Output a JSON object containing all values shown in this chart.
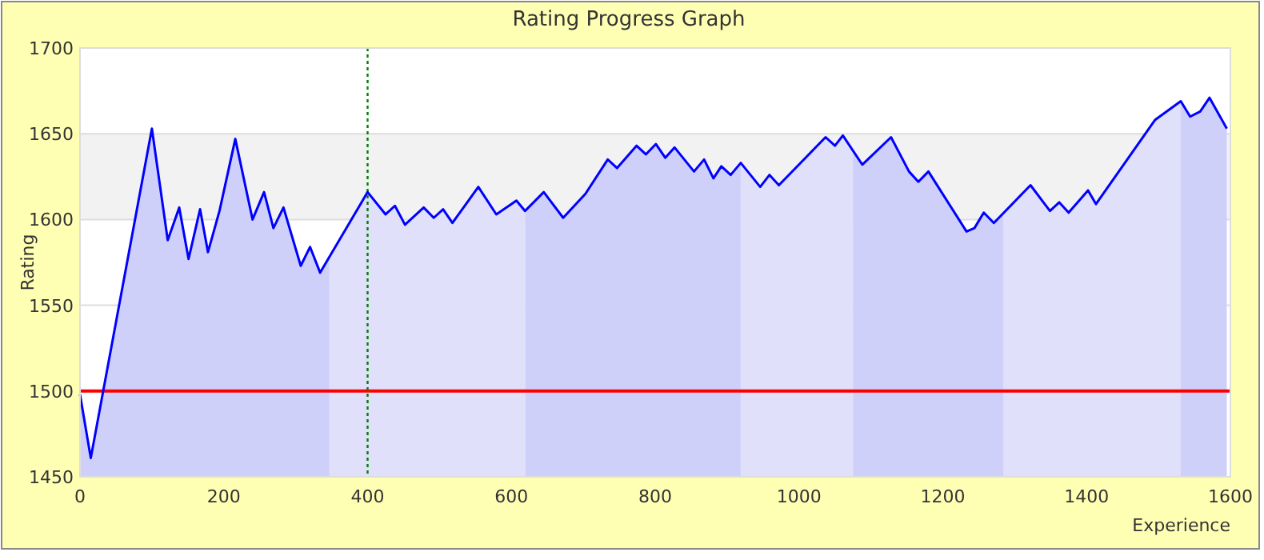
{
  "chart_data": {
    "type": "line",
    "title": "Rating Progress Graph",
    "xlabel": "Experience",
    "ylabel": "Rating",
    "xlim": [
      0,
      1600
    ],
    "xticks": [
      0,
      200,
      400,
      600,
      800,
      1000,
      1200,
      1400,
      1600
    ],
    "ylim": [
      1450,
      1700
    ],
    "yticks": [
      1450,
      1500,
      1550,
      1600,
      1650,
      1700
    ],
    "grid": "y",
    "bands": [
      {
        "axis": "y",
        "from": 1600,
        "to": 1650,
        "color": "#f2f2f2"
      }
    ],
    "ref_lines": [
      {
        "axis": "y",
        "value": 1500,
        "color": "#ff0000",
        "line_style": "solid"
      },
      {
        "axis": "x",
        "value": 400,
        "color": "#008000",
        "line_style": "dotted"
      }
    ],
    "series": [
      {
        "type": "area",
        "color": "#cfd0fa",
        "x": [
          0,
          15,
          100,
          122,
          138,
          151,
          167,
          178,
          194,
          216,
          240,
          256,
          269,
          283,
          307,
          320,
          334,
          347
        ],
        "values": [
          1498,
          1461,
          1653,
          1588,
          1607,
          1577,
          1606,
          1581,
          1605,
          1647,
          1600,
          1616,
          1595,
          1607,
          1573,
          1584,
          1569,
          1578
        ]
      },
      {
        "type": "area",
        "color": "#e0e0fa",
        "x": [
          347,
          400,
          425,
          438,
          452,
          478,
          492,
          505,
          518,
          554,
          579,
          607,
          619
        ],
        "values": [
          1578,
          1616,
          1603,
          1608,
          1597,
          1607,
          1601,
          1606,
          1598,
          1619,
          1603,
          1611,
          1605
        ]
      },
      {
        "type": "area",
        "color": "#cfd0fa",
        "x": [
          619,
          645,
          672,
          703,
          734,
          747,
          774,
          787,
          801,
          814,
          827,
          854,
          868,
          881,
          892,
          905,
          919
        ],
        "values": [
          1605,
          1616,
          1601,
          1615,
          1635,
          1630,
          1643,
          1638,
          1644,
          1636,
          1642,
          1628,
          1635,
          1624,
          1631,
          1626,
          1633
        ]
      },
      {
        "type": "area",
        "color": "#e0e0fa",
        "x": [
          919,
          946,
          959,
          972,
          1037,
          1050,
          1061,
          1075
        ],
        "values": [
          1633,
          1619,
          1626,
          1620,
          1648,
          1643,
          1649,
          1640
        ]
      },
      {
        "type": "area",
        "color": "#cfd0fa",
        "x": [
          1075,
          1088,
          1128,
          1153,
          1166,
          1180,
          1233,
          1244,
          1257,
          1271,
          1284
        ],
        "values": [
          1640,
          1632,
          1648,
          1628,
          1622,
          1628,
          1593,
          1595,
          1604,
          1598,
          1604
        ]
      },
      {
        "type": "area",
        "color": "#e0e0fa",
        "x": [
          1284,
          1322,
          1349,
          1362,
          1375,
          1402,
          1413,
          1495,
          1531
        ],
        "values": [
          1604,
          1620,
          1605,
          1610,
          1604,
          1617,
          1609,
          1658,
          1669
        ]
      },
      {
        "type": "area",
        "color": "#cfd0fa",
        "x": [
          1531,
          1544,
          1558,
          1571,
          1595
        ],
        "values": [
          1669,
          1660,
          1663,
          1671,
          1653
        ]
      },
      {
        "color": "#0000ff",
        "x": [
          0,
          15,
          100,
          122,
          138,
          151,
          167,
          178,
          194,
          216,
          240,
          256,
          269,
          283,
          307,
          320,
          334,
          400,
          425,
          438,
          452,
          478,
          492,
          505,
          518,
          554,
          579,
          607,
          619,
          645,
          672,
          703,
          734,
          747,
          774,
          787,
          801,
          814,
          827,
          854,
          868,
          881,
          892,
          905,
          919,
          946,
          959,
          972,
          1037,
          1050,
          1061,
          1088,
          1128,
          1153,
          1166,
          1180,
          1233,
          1244,
          1257,
          1271,
          1322,
          1349,
          1362,
          1375,
          1402,
          1413,
          1495,
          1531,
          1544,
          1558,
          1571,
          1595
        ],
        "values": [
          1498,
          1461,
          1653,
          1588,
          1607,
          1577,
          1606,
          1581,
          1605,
          1647,
          1600,
          1616,
          1595,
          1607,
          1573,
          1584,
          1569,
          1616,
          1603,
          1608,
          1597,
          1607,
          1601,
          1606,
          1598,
          1619,
          1603,
          1611,
          1605,
          1616,
          1601,
          1615,
          1635,
          1630,
          1643,
          1638,
          1644,
          1636,
          1642,
          1628,
          1635,
          1624,
          1631,
          1626,
          1633,
          1619,
          1626,
          1620,
          1648,
          1643,
          1649,
          1632,
          1648,
          1628,
          1622,
          1628,
          1593,
          1595,
          1604,
          1598,
          1620,
          1605,
          1610,
          1604,
          1617,
          1609,
          1658,
          1669,
          1660,
          1663,
          1671,
          1653
        ]
      }
    ]
  }
}
